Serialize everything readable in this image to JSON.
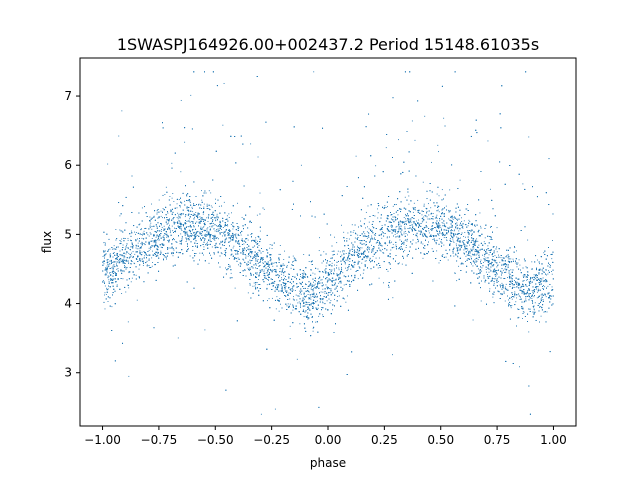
{
  "chart_data": {
    "type": "scatter",
    "title": "1SWASPJ164926.00+002437.2 Period 15148.61035s",
    "xlabel": "phase",
    "ylabel": "flux",
    "xlim": [
      -1.1,
      1.1
    ],
    "ylim": [
      2.23,
      7.55
    ],
    "xticks": [
      -1.0,
      -0.75,
      -0.5,
      -0.25,
      0.0,
      0.25,
      0.5,
      0.75,
      1.0
    ],
    "xtick_labels": [
      "−1.00",
      "−0.75",
      "−0.50",
      "−0.25",
      "0.00",
      "0.25",
      "0.50",
      "0.75",
      "1.00"
    ],
    "yticks": [
      3,
      4,
      5,
      6,
      7
    ],
    "ytick_labels": [
      "3",
      "4",
      "5",
      "6",
      "7"
    ],
    "grid": false,
    "series": [
      {
        "color": "#1f77b4",
        "marker_style": "point",
        "approx_point_count": 16000,
        "x_range": [
          -1.0,
          1.0
        ],
        "trend": [
          {
            "x": -1.0,
            "y": 4.4
          },
          {
            "x": -0.875,
            "y": 4.75
          },
          {
            "x": -0.75,
            "y": 5.0
          },
          {
            "x": -0.625,
            "y": 5.15
          },
          {
            "x": -0.5,
            "y": 5.05
          },
          {
            "x": -0.375,
            "y": 4.8
          },
          {
            "x": -0.25,
            "y": 4.4
          },
          {
            "x": -0.125,
            "y": 4.15
          },
          {
            "x": -0.05,
            "y": 4.15
          },
          {
            "x": 0.0,
            "y": 4.3
          },
          {
            "x": 0.125,
            "y": 4.7
          },
          {
            "x": 0.25,
            "y": 5.0
          },
          {
            "x": 0.375,
            "y": 5.15
          },
          {
            "x": 0.5,
            "y": 5.1
          },
          {
            "x": 0.625,
            "y": 4.85
          },
          {
            "x": 0.75,
            "y": 4.5
          },
          {
            "x": 0.875,
            "y": 4.2
          },
          {
            "x": 1.0,
            "y": 4.3
          }
        ],
        "scatter_sd": 0.22,
        "outlier_fraction": 0.05,
        "outlier_range": [
          2.4,
          7.35
        ]
      }
    ]
  }
}
